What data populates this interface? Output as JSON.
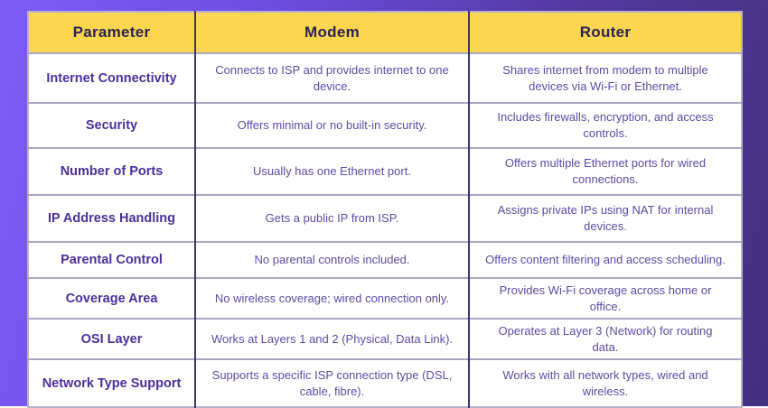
{
  "chart_data": {
    "type": "table",
    "columns": [
      "Parameter",
      "Modem",
      "Router"
    ],
    "rows": [
      [
        "Internet Connectivity",
        "Connects to ISP and provides internet to one device.",
        "Shares internet from modem to multiple devices via Wi-Fi or Ethernet."
      ],
      [
        "Security",
        "Offers minimal or no built-in security.",
        "Includes firewalls, encryption, and access controls."
      ],
      [
        "Number of Ports",
        "Usually has one Ethernet port.",
        "Offers multiple Ethernet ports for wired connections."
      ],
      [
        "IP Address Handling",
        "Gets a public IP from ISP.",
        "Assigns private IPs using NAT for internal devices."
      ],
      [
        "Parental Control",
        "No parental controls included.",
        "Offers content filtering and access scheduling."
      ],
      [
        "Coverage Area",
        "No wireless coverage; wired connection only.",
        "Provides Wi-Fi coverage across home or office."
      ],
      [
        "OSI Layer",
        "Works at Layers 1 and 2 (Physical, Data Link).",
        "Operates at Layer 3 (Network) for routing data."
      ],
      [
        "Network Type Support",
        "Supports a specific ISP connection type (DSL, cable, fibre).",
        "Works with all network types, wired and wireless."
      ]
    ]
  },
  "colors": {
    "background_gradient_start": "#7d5cf7",
    "background_gradient_end": "#43307f",
    "header_bg": "#fcd650",
    "header_text": "#2b2453",
    "row_label_text": "#4b2f9d",
    "cell_text": "#5c4ba8",
    "column_divider": "#3e3468",
    "row_divider": "#aaa6c2",
    "cell_bg": "#ffffff"
  }
}
